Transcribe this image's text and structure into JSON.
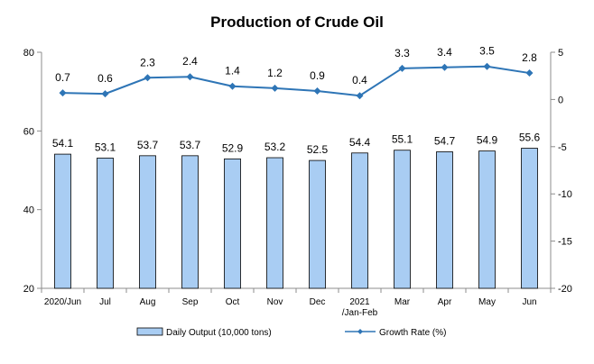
{
  "chart_data": {
    "type": "bar+line",
    "title": "Production of Crude Oil",
    "categories": [
      [
        "2020/Jun"
      ],
      [
        "Jul"
      ],
      [
        "Aug"
      ],
      [
        "Sep"
      ],
      [
        "Oct"
      ],
      [
        "Nov"
      ],
      [
        "Dec"
      ],
      [
        "2021",
        "/Jan-Feb"
      ],
      [
        "Mar"
      ],
      [
        "Apr"
      ],
      [
        "May"
      ],
      [
        "Jun"
      ]
    ],
    "series": [
      {
        "name": "Daily Output (10,000 tons)",
        "type": "bar",
        "axis": "left",
        "values": [
          54.1,
          53.1,
          53.7,
          53.7,
          52.9,
          53.2,
          52.5,
          54.4,
          55.1,
          54.7,
          54.9,
          55.6
        ]
      },
      {
        "name": "Growth Rate (%)",
        "type": "line",
        "axis": "right",
        "values": [
          0.7,
          0.6,
          2.3,
          2.4,
          1.4,
          1.2,
          0.9,
          0.4,
          3.3,
          3.4,
          3.5,
          2.8
        ]
      }
    ],
    "y_left": {
      "lim": [
        20,
        80
      ],
      "ticks": [
        20,
        40,
        60,
        80
      ]
    },
    "y_right": {
      "lim": [
        -20,
        5
      ],
      "ticks": [
        -20,
        -15,
        -10,
        -5,
        0,
        5
      ]
    },
    "grid": false,
    "legend_position": "bottom",
    "colors": {
      "bar_fill": "#a9cdf3",
      "bar_stroke": "#000000",
      "line": "#2e75b6",
      "axis": "#8c8c8c"
    }
  }
}
